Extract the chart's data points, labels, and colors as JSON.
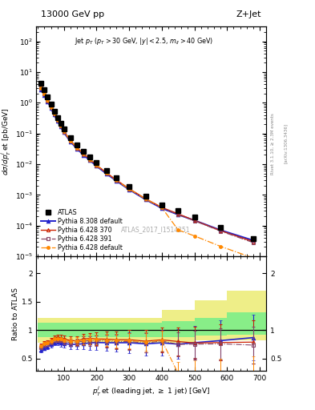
{
  "title_left": "13000 GeV pp",
  "title_right": "Z+Jet",
  "watermark": "ATLAS_2017_I1514251",
  "rivet_label": "Rivet 3.1.10, ≥ 2.3M events",
  "arxiv_label": "[arXiv:1306.3436]",
  "atlas_x": [
    30,
    40,
    50,
    60,
    70,
    80,
    90,
    100,
    120,
    140,
    160,
    180,
    200,
    230,
    260,
    300,
    350,
    400,
    450,
    500,
    580,
    680
  ],
  "atlas_y": [
    4.2,
    2.6,
    1.55,
    0.9,
    0.52,
    0.32,
    0.21,
    0.14,
    0.072,
    0.042,
    0.026,
    0.017,
    0.011,
    0.0063,
    0.0037,
    0.0019,
    0.00093,
    0.00047,
    0.0003,
    0.00019,
    8.7e-05,
    3.8e-05
  ],
  "py6_370_x": [
    30,
    40,
    50,
    60,
    70,
    80,
    90,
    100,
    120,
    140,
    160,
    180,
    200,
    230,
    260,
    300,
    350,
    400,
    450,
    500,
    580,
    680
  ],
  "py6_370_y": [
    3.1,
    2.0,
    1.22,
    0.74,
    0.45,
    0.28,
    0.182,
    0.118,
    0.059,
    0.034,
    0.022,
    0.0145,
    0.0093,
    0.0053,
    0.00308,
    0.00158,
    0.00075,
    0.00039,
    0.00024,
    0.000147,
    6.8e-05,
    3e-05
  ],
  "py6_391_x": [
    30,
    40,
    50,
    60,
    70,
    80,
    90,
    100,
    120,
    140,
    160,
    180,
    200,
    230,
    260,
    300,
    350,
    400,
    450,
    500,
    580,
    680
  ],
  "py6_391_y": [
    2.95,
    1.92,
    1.16,
    0.71,
    0.43,
    0.268,
    0.174,
    0.113,
    0.056,
    0.033,
    0.021,
    0.0138,
    0.0089,
    0.0051,
    0.00295,
    0.00152,
    0.00072,
    0.00038,
    0.000225,
    0.000143,
    6.6e-05,
    2.8e-05
  ],
  "py6_def_x": [
    30,
    40,
    50,
    60,
    70,
    80,
    90,
    100,
    120,
    140,
    160,
    180,
    200,
    230,
    260,
    300,
    350,
    400,
    450,
    500,
    580,
    680
  ],
  "py6_def_y": [
    3.05,
    1.98,
    1.2,
    0.73,
    0.44,
    0.272,
    0.177,
    0.115,
    0.058,
    0.034,
    0.0215,
    0.0142,
    0.0092,
    0.0052,
    0.00302,
    0.00155,
    0.00074,
    0.000385,
    7.2e-05,
    4.6e-05,
    2.1e-05,
    8.8e-06
  ],
  "py8_def_x": [
    30,
    40,
    50,
    60,
    70,
    80,
    90,
    100,
    120,
    140,
    160,
    180,
    200,
    230,
    260,
    300,
    350,
    400,
    450,
    500,
    580,
    680
  ],
  "py8_def_y": [
    2.72,
    1.78,
    1.1,
    0.67,
    0.405,
    0.254,
    0.164,
    0.107,
    0.054,
    0.0315,
    0.0198,
    0.0132,
    0.0086,
    0.0049,
    0.00288,
    0.00148,
    0.000705,
    0.000365,
    0.000226,
    0.000148,
    7.1e-05,
    3.3e-05
  ],
  "ratio_x": [
    30,
    40,
    50,
    60,
    70,
    80,
    90,
    100,
    120,
    140,
    160,
    180,
    200,
    230,
    260,
    300,
    350,
    400,
    450,
    500,
    580,
    680
  ],
  "ratio_py6_370": [
    0.74,
    0.77,
    0.79,
    0.82,
    0.865,
    0.875,
    0.867,
    0.843,
    0.819,
    0.81,
    0.846,
    0.853,
    0.845,
    0.841,
    0.832,
    0.832,
    0.806,
    0.83,
    0.8,
    0.774,
    0.782,
    0.789
  ],
  "ratio_py6_391": [
    0.7,
    0.738,
    0.748,
    0.789,
    0.827,
    0.838,
    0.829,
    0.807,
    0.778,
    0.786,
    0.808,
    0.812,
    0.809,
    0.81,
    0.797,
    0.8,
    0.774,
    0.809,
    0.75,
    0.753,
    0.759,
    0.737
  ],
  "ratio_py6_def": [
    0.726,
    0.762,
    0.774,
    0.811,
    0.846,
    0.85,
    0.843,
    0.821,
    0.806,
    0.81,
    0.827,
    0.835,
    0.836,
    0.825,
    0.816,
    0.816,
    0.795,
    0.819,
    0.24,
    0.242,
    0.241,
    0.232
  ],
  "ratio_py8_def": [
    0.648,
    0.685,
    0.71,
    0.744,
    0.779,
    0.794,
    0.781,
    0.764,
    0.75,
    0.75,
    0.762,
    0.776,
    0.782,
    0.778,
    0.778,
    0.779,
    0.758,
    0.777,
    0.753,
    0.779,
    0.816,
    0.868
  ],
  "ratio_py8_err": [
    0.04,
    0.04,
    0.04,
    0.05,
    0.05,
    0.06,
    0.07,
    0.07,
    0.08,
    0.09,
    0.1,
    0.12,
    0.13,
    0.14,
    0.16,
    0.18,
    0.2,
    0.23,
    0.26,
    0.3,
    0.35,
    0.4
  ],
  "ratio_py6_err": [
    0.03,
    0.03,
    0.03,
    0.04,
    0.04,
    0.05,
    0.05,
    0.06,
    0.07,
    0.08,
    0.09,
    0.1,
    0.11,
    0.13,
    0.15,
    0.17,
    0.2,
    0.22,
    0.25,
    0.28,
    0.32,
    0.38
  ],
  "bx_edges": [
    20,
    100,
    200,
    300,
    400,
    500,
    600,
    720
  ],
  "band_yellow_lo": [
    0.78,
    0.78,
    0.78,
    0.78,
    0.78,
    0.82,
    0.82,
    0.82
  ],
  "band_yellow_hi": [
    1.22,
    1.22,
    1.22,
    1.22,
    1.35,
    1.52,
    1.7,
    1.9
  ],
  "band_green_lo": [
    0.87,
    0.87,
    0.87,
    0.87,
    0.87,
    0.9,
    0.92,
    0.92
  ],
  "band_green_hi": [
    1.13,
    1.13,
    1.13,
    1.13,
    1.16,
    1.22,
    1.32,
    1.42
  ],
  "color_atlas": "#000000",
  "color_py6_370": "#cc2200",
  "color_py6_391": "#884466",
  "color_py6_def": "#ff8800",
  "color_py8_def": "#2222cc",
  "color_green": "#88ee88",
  "color_yellow": "#eeee88",
  "xlim": [
    15,
    720
  ],
  "ylim_main": [
    1e-05,
    300.0
  ],
  "ylim_ratio": [
    0.28,
    2.3
  ],
  "ratio_yticks": [
    0.5,
    1.0,
    1.5,
    2.0
  ]
}
